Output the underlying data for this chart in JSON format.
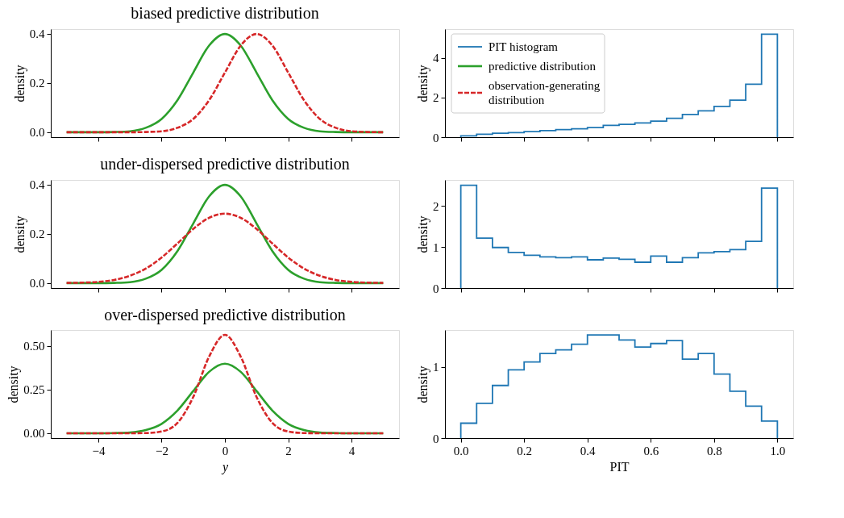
{
  "chart_data": [
    {
      "type": "line",
      "title": "biased predictive distribution",
      "ylabel": "density",
      "x": [
        -5,
        -4.5,
        -4,
        -3.5,
        -3,
        -2.5,
        -2,
        -1.5,
        -1,
        -0.5,
        0,
        0.5,
        1,
        1.5,
        2,
        2.5,
        3,
        3.5,
        4,
        4.5,
        5
      ],
      "series": [
        {
          "name": "predictive distribution",
          "color": "#2ca02c",
          "line_style": "solid",
          "values": [
            0,
            0,
            0,
            0.001,
            0.004,
            0.018,
            0.054,
            0.13,
            0.242,
            0.352,
            0.399,
            0.352,
            0.242,
            0.13,
            0.054,
            0.018,
            0.004,
            0.001,
            0,
            0,
            0
          ]
        },
        {
          "name": "observation-generating distribution",
          "color": "#d62728",
          "line_style": "dashed",
          "values": [
            0,
            0,
            0,
            0,
            0,
            0.001,
            0.004,
            0.018,
            0.054,
            0.13,
            0.242,
            0.352,
            0.399,
            0.352,
            0.242,
            0.13,
            0.054,
            0.018,
            0.004,
            0.001,
            0
          ]
        }
      ],
      "xlim": [
        -5.5,
        5.5
      ],
      "xticks": [
        {
          "value": -4,
          "label": null
        },
        {
          "value": -2,
          "label": null
        },
        {
          "value": 0,
          "label": null
        },
        {
          "value": 2,
          "label": null
        },
        {
          "value": 4,
          "label": null
        }
      ],
      "ylim": [
        -0.02,
        0.419
      ],
      "yticks": [
        {
          "value": 0,
          "label": "0.0"
        },
        {
          "value": 0.2,
          "label": "0.2"
        },
        {
          "value": 0.4,
          "label": "0.4"
        }
      ],
      "tick_labels": "y",
      "legend": "right",
      "grid": false
    },
    {
      "type": "histogram",
      "ylabel": "density",
      "bins": [
        0,
        0.05,
        0.1,
        0.15,
        0.2,
        0.25,
        0.3,
        0.35,
        0.4,
        0.45,
        0.5,
        0.55,
        0.6,
        0.65,
        0.7,
        0.75,
        0.8,
        0.85,
        0.9,
        0.95,
        1
      ],
      "series": [
        {
          "name": "PIT histogram",
          "color": "#1f77b4",
          "values": [
            0.07,
            0.15,
            0.2,
            0.23,
            0.28,
            0.33,
            0.38,
            0.42,
            0.48,
            0.6,
            0.65,
            0.72,
            0.81,
            0.95,
            1.15,
            1.33,
            1.55,
            1.87,
            2.67,
            5.2
          ]
        }
      ],
      "xlim": [
        -0.05,
        1.05
      ],
      "xticks": [
        {
          "value": 0,
          "label": null
        },
        {
          "value": 0.2,
          "label": null
        },
        {
          "value": 0.4,
          "label": null
        },
        {
          "value": 0.6,
          "label": null
        },
        {
          "value": 0.8,
          "label": null
        },
        {
          "value": 1,
          "label": null
        }
      ],
      "ylim": [
        0,
        5.46
      ],
      "yticks": [
        0,
        2,
        4
      ],
      "tick_labels": "y",
      "legend": "top left",
      "grid": false
    },
    {
      "type": "line",
      "title": "under-dispersed predictive distribution",
      "ylabel": "density",
      "x": [
        -5,
        -4.5,
        -4,
        -3.5,
        -3,
        -2.5,
        -2,
        -1.5,
        -1,
        -0.5,
        0,
        0.5,
        1,
        1.5,
        2,
        2.5,
        3,
        3.5,
        4,
        4.5,
        5
      ],
      "series": [
        {
          "color": "#2ca02c",
          "line_style": "solid",
          "values": [
            0,
            0,
            0,
            0.001,
            0.004,
            0.018,
            0.054,
            0.13,
            0.242,
            0.352,
            0.399,
            0.352,
            0.242,
            0.13,
            0.054,
            0.018,
            0.004,
            0.001,
            0,
            0,
            0
          ]
        },
        {
          "color": "#d62728",
          "line_style": "dashed",
          "values": [
            0.001,
            0.002,
            0.005,
            0.013,
            0.03,
            0.059,
            0.104,
            0.161,
            0.22,
            0.265,
            0.282,
            0.265,
            0.22,
            0.161,
            0.104,
            0.059,
            0.03,
            0.013,
            0.005,
            0.002,
            0.001
          ]
        }
      ],
      "xlim": [
        -5.5,
        5.5
      ],
      "xticks": [
        {
          "value": -4,
          "label": null
        },
        {
          "value": -2,
          "label": null
        },
        {
          "value": 0,
          "label": null
        },
        {
          "value": 2,
          "label": null
        },
        {
          "value": 4,
          "label": null
        }
      ],
      "ylim": [
        -0.02,
        0.419
      ],
      "yticks": [
        {
          "value": 0,
          "label": "0.0"
        },
        {
          "value": 0.2,
          "label": "0.2"
        },
        {
          "value": 0.4,
          "label": "0.4"
        }
      ],
      "tick_labels": "y",
      "grid": false
    },
    {
      "type": "histogram",
      "ylabel": "density",
      "bins": [
        0,
        0.05,
        0.1,
        0.15,
        0.2,
        0.25,
        0.3,
        0.35,
        0.4,
        0.45,
        0.5,
        0.55,
        0.6,
        0.65,
        0.7,
        0.75,
        0.8,
        0.85,
        0.9,
        0.95,
        1
      ],
      "series": [
        {
          "color": "#1f77b4",
          "values": [
            2.51,
            1.22,
            0.99,
            0.87,
            0.8,
            0.76,
            0.74,
            0.76,
            0.69,
            0.73,
            0.7,
            0.63,
            0.78,
            0.63,
            0.74,
            0.86,
            0.89,
            0.94,
            1.14,
            2.44
          ]
        }
      ],
      "xlim": [
        -0.05,
        1.05
      ],
      "xticks": [
        {
          "value": 0,
          "label": null
        },
        {
          "value": 0.2,
          "label": null
        },
        {
          "value": 0.4,
          "label": null
        },
        {
          "value": 0.6,
          "label": null
        },
        {
          "value": 0.8,
          "label": null
        },
        {
          "value": 1,
          "label": null
        }
      ],
      "ylim": [
        0,
        2.64
      ],
      "yticks": [
        0,
        1,
        2
      ],
      "tick_labels": "y",
      "grid": false
    },
    {
      "type": "line",
      "title": "over-dispersed predictive distribution",
      "xlabel": "y",
      "ylabel": "density",
      "x": [
        -5,
        -4.5,
        -4,
        -3.5,
        -3,
        -2.5,
        -2,
        -1.5,
        -1,
        -0.5,
        0,
        0.5,
        1,
        1.5,
        2,
        2.5,
        3,
        3.5,
        4,
        4.5,
        5
      ],
      "series": [
        {
          "color": "#2ca02c",
          "line_style": "solid",
          "values": [
            0,
            0,
            0,
            0.001,
            0.004,
            0.018,
            0.054,
            0.13,
            0.242,
            0.352,
            0.399,
            0.352,
            0.242,
            0.13,
            0.054,
            0.018,
            0.004,
            0.001,
            0,
            0,
            0
          ]
        },
        {
          "color": "#d62728",
          "line_style": "dashed",
          "values": [
            0,
            0,
            0,
            0,
            0,
            0.001,
            0.01,
            0.059,
            0.208,
            0.439,
            0.564,
            0.439,
            0.208,
            0.059,
            0.01,
            0.001,
            0,
            0,
            0,
            0,
            0
          ]
        }
      ],
      "xlim": [
        -5.5,
        5.5
      ],
      "xticks": [
        {
          "value": -4,
          "label": "−4"
        },
        {
          "value": -2,
          "label": "−2"
        },
        0,
        2,
        4
      ],
      "ylim": [
        -0.028,
        0.592
      ],
      "yticks": [
        {
          "value": 0,
          "label": "0.00"
        },
        {
          "value": 0.25,
          "label": "0.25"
        },
        {
          "value": 0.5,
          "label": "0.50"
        }
      ],
      "grid": false
    },
    {
      "type": "histogram",
      "xlabel": "PIT",
      "ylabel": "density",
      "bins": [
        0,
        0.05,
        0.1,
        0.15,
        0.2,
        0.25,
        0.3,
        0.35,
        0.4,
        0.45,
        0.5,
        0.55,
        0.6,
        0.65,
        0.7,
        0.75,
        0.8,
        0.85,
        0.9,
        0.95,
        1
      ],
      "series": [
        {
          "color": "#1f77b4",
          "values": [
            0.21,
            0.49,
            0.74,
            0.96,
            1.07,
            1.19,
            1.24,
            1.32,
            1.45,
            1.45,
            1.38,
            1.28,
            1.33,
            1.37,
            1.11,
            1.19,
            0.9,
            0.66,
            0.45,
            0.24
          ]
        }
      ],
      "xlim": [
        -0.05,
        1.05
      ],
      "xticks": [
        {
          "value": 0,
          "label": "0.0"
        },
        {
          "value": 0.2,
          "label": "0.2"
        },
        {
          "value": 0.4,
          "label": "0.4"
        },
        {
          "value": 0.6,
          "label": "0.6"
        },
        {
          "value": 0.8,
          "label": "0.8"
        },
        {
          "value": 1,
          "label": "1.0"
        }
      ],
      "ylim": [
        0,
        1.52
      ],
      "yticks": [
        0,
        1
      ],
      "grid": false
    }
  ]
}
